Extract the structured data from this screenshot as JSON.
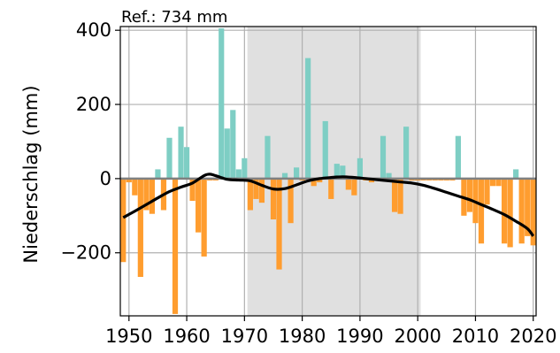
{
  "chart_data": {
    "type": "bar",
    "annotation": "Ref.: 734 mm",
    "ylabel": "Niederschlag (mm)",
    "xlabel": "",
    "xlim": [
      1948.5,
      2020.5
    ],
    "ylim": [
      -370,
      410
    ],
    "x_ticks": [
      1950,
      1960,
      1970,
      1980,
      1990,
      2000,
      2010,
      2020
    ],
    "x_tick_labels": [
      "1950",
      "1960",
      "1970",
      "1980",
      "1990",
      "2000",
      "2010",
      "2020"
    ],
    "y_ticks": [
      400,
      200,
      0,
      -200
    ],
    "y_tick_labels": [
      "400",
      "200",
      "0",
      "−200"
    ],
    "grid": true,
    "reference_period": [
      1970.5,
      2000.5
    ],
    "colors": {
      "positive": "#7ecec4",
      "negative": "#ff9d2f",
      "reference_shade": "#e0e0e0",
      "grid": "#b0b0b0",
      "zero_line": "#808080",
      "trend": "#000000"
    },
    "series": [
      {
        "type": "bar",
        "x": [
          1949,
          1950,
          1951,
          1952,
          1953,
          1954,
          1955,
          1956,
          1957,
          1958,
          1959,
          1960,
          1961,
          1962,
          1963,
          1964,
          1965,
          1966,
          1967,
          1968,
          1969,
          1970,
          1971,
          1972,
          1973,
          1974,
          1975,
          1976,
          1977,
          1978,
          1979,
          1980,
          1981,
          1982,
          1983,
          1984,
          1985,
          1986,
          1987,
          1988,
          1989,
          1990,
          1991,
          1992,
          1993,
          1994,
          1995,
          1996,
          1997,
          1998,
          1999,
          2000,
          2001,
          2002,
          2003,
          2004,
          2005,
          2006,
          2007,
          2008,
          2009,
          2010,
          2011,
          2012,
          2013,
          2014,
          2015,
          2016,
          2017,
          2018,
          2019,
          2020
        ],
        "values": [
          -225,
          -10,
          -45,
          -265,
          -85,
          -95,
          25,
          -85,
          110,
          -365,
          140,
          85,
          -60,
          -145,
          -210,
          -5,
          -5,
          405,
          135,
          185,
          25,
          55,
          -85,
          -55,
          -65,
          115,
          -110,
          -245,
          15,
          -120,
          30,
          -5,
          325,
          -20,
          -10,
          155,
          -55,
          40,
          35,
          -30,
          -45,
          55,
          -5,
          -10,
          -5,
          115,
          15,
          -90,
          -95,
          140,
          -5,
          -5,
          -5,
          -5,
          -5,
          -5,
          -5,
          -5,
          115,
          -100,
          -90,
          -120,
          -175,
          -70,
          -20,
          -20,
          -175,
          -185,
          25,
          -175,
          -155,
          -180
        ]
      },
      {
        "type": "line",
        "x": [
          1949,
          1951,
          1953,
          1955,
          1957,
          1959,
          1961,
          1963,
          1964,
          1965,
          1967,
          1969,
          1971,
          1973,
          1975,
          1977,
          1979,
          1981,
          1983,
          1985,
          1987,
          1989,
          1991,
          1993,
          1995,
          1997,
          1999,
          2001,
          2003,
          2005,
          2007,
          2009,
          2011,
          2013,
          2015,
          2017,
          2019,
          2020
        ],
        "values": [
          -105,
          -88,
          -70,
          -52,
          -35,
          -23,
          -12,
          8,
          12,
          8,
          -2,
          -4,
          -6,
          -18,
          -28,
          -27,
          -17,
          -6,
          0,
          3,
          5,
          3,
          0,
          -3,
          -6,
          -9,
          -12,
          -18,
          -27,
          -37,
          -47,
          -57,
          -70,
          -83,
          -97,
          -115,
          -135,
          -155
        ]
      }
    ]
  }
}
